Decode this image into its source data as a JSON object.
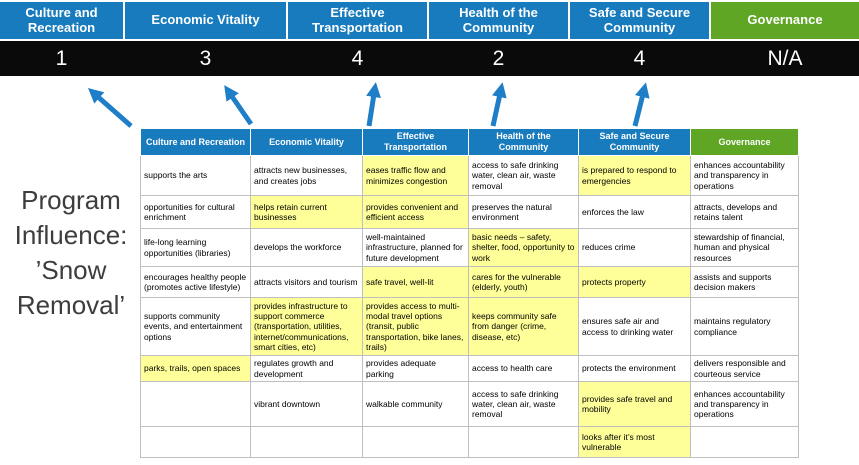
{
  "title": {
    "text": "Program Influence: ’Snow Removal’"
  },
  "colors": {
    "header_blue": "#187BBE",
    "header_green": "#5EA624",
    "score_band_black": "#0A0A0A",
    "highlight_yellow": "#FFFF99",
    "grid_gray": "#BFBFBF",
    "arrow_blue": "#1F7EC8"
  },
  "summary": {
    "columns": [
      {
        "label": "Culture and Recreation",
        "score": "1",
        "theme": "blue"
      },
      {
        "label": "Economic Vitality",
        "score": "3",
        "theme": "blue"
      },
      {
        "label": "Effective Transportation",
        "score": "4",
        "theme": "blue"
      },
      {
        "label": "Health of the Community",
        "score": "2",
        "theme": "blue"
      },
      {
        "label": "Safe and Secure Community",
        "score": "4",
        "theme": "blue"
      },
      {
        "label": "Governance",
        "score": "N/A",
        "theme": "green"
      }
    ]
  },
  "matrix": {
    "headers": [
      {
        "label": "Culture and Recreation",
        "theme": "blue"
      },
      {
        "label": "Economic Vitality",
        "theme": "blue"
      },
      {
        "label": "Effective Transportation",
        "theme": "blue"
      },
      {
        "label": "Health of the Community",
        "theme": "blue"
      },
      {
        "label": "Safe and Secure Community",
        "theme": "blue"
      },
      {
        "label": "Governance",
        "theme": "green"
      }
    ],
    "rows": [
      [
        {
          "text": "supports the arts",
          "highlight": false
        },
        {
          "text": "attracts new businesses, and creates jobs",
          "highlight": false
        },
        {
          "text": "eases traffic flow and minimizes congestion",
          "highlight": true
        },
        {
          "text": "access to safe drinking water, clean air, waste removal",
          "highlight": false
        },
        {
          "text": "is prepared to respond to emergencies",
          "highlight": true
        },
        {
          "text": "enhances accountability and transparency in operations",
          "highlight": false
        }
      ],
      [
        {
          "text": "opportunities for cultural enrichment",
          "highlight": false
        },
        {
          "text": "helps retain current businesses",
          "highlight": true
        },
        {
          "text": "provides convenient and efficient access",
          "highlight": true
        },
        {
          "text": "preserves the natural environment",
          "highlight": false
        },
        {
          "text": "enforces the law",
          "highlight": false
        },
        {
          "text": "attracts, develops and retains talent",
          "highlight": false
        }
      ],
      [
        {
          "text": "life-long learning opportunities (libraries)",
          "highlight": false
        },
        {
          "text": "develops the workforce",
          "highlight": false
        },
        {
          "text": "well-maintained infrastructure, planned for future development",
          "highlight": false
        },
        {
          "text": "basic needs – safety, shelter, food, opportunity to work",
          "highlight": true
        },
        {
          "text": "reduces crime",
          "highlight": false
        },
        {
          "text": "stewardship of financial, human and physical resources",
          "highlight": false
        }
      ],
      [
        {
          "text": "encourages healthy people (promotes active lifestyle)",
          "highlight": false
        },
        {
          "text": "attracts visitors and tourism",
          "highlight": false
        },
        {
          "text": "safe travel, well-lit",
          "highlight": true
        },
        {
          "text": "cares for the vulnerable (elderly, youth)",
          "highlight": true
        },
        {
          "text": "protects property",
          "highlight": true
        },
        {
          "text": "assists and supports decision makers",
          "highlight": false
        }
      ],
      [
        {
          "text": "supports community events, and entertainment options",
          "highlight": false
        },
        {
          "text": "provides infrastructure to support commerce (transportation, utilities, internet/communications, smart cities, etc)",
          "highlight": true
        },
        {
          "text": "provides access to multi-modal travel options (transit, public transportation, bike lanes, trails)",
          "highlight": true
        },
        {
          "text": "keeps community safe from danger (crime, disease, etc)",
          "highlight": true
        },
        {
          "text": "ensures safe air and access to drinking water",
          "highlight": false
        },
        {
          "text": "maintains regulatory compliance",
          "highlight": false
        }
      ],
      [
        {
          "text": "parks, trails, open spaces",
          "highlight": true
        },
        {
          "text": "regulates growth and development",
          "highlight": false
        },
        {
          "text": "provides adequate parking",
          "highlight": false
        },
        {
          "text": "access to health care",
          "highlight": false
        },
        {
          "text": "protects the environment",
          "highlight": false
        },
        {
          "text": "delivers responsible and courteous service",
          "highlight": false
        }
      ],
      [
        {
          "text": "",
          "highlight": false
        },
        {
          "text": "vibrant downtown",
          "highlight": false
        },
        {
          "text": "walkable community",
          "highlight": false
        },
        {
          "text": "access to safe drinking water, clean air, waste removal",
          "highlight": false
        },
        {
          "text": "provides safe travel and mobility",
          "highlight": true
        },
        {
          "text": "enhances accountability and transparency in operations",
          "highlight": false
        }
      ],
      [
        {
          "text": "",
          "highlight": false
        },
        {
          "text": "",
          "highlight": false
        },
        {
          "text": "",
          "highlight": false
        },
        {
          "text": "",
          "highlight": false
        },
        {
          "text": "looks after it’s most vulnerable",
          "highlight": true
        },
        {
          "text": "",
          "highlight": false
        }
      ]
    ]
  }
}
